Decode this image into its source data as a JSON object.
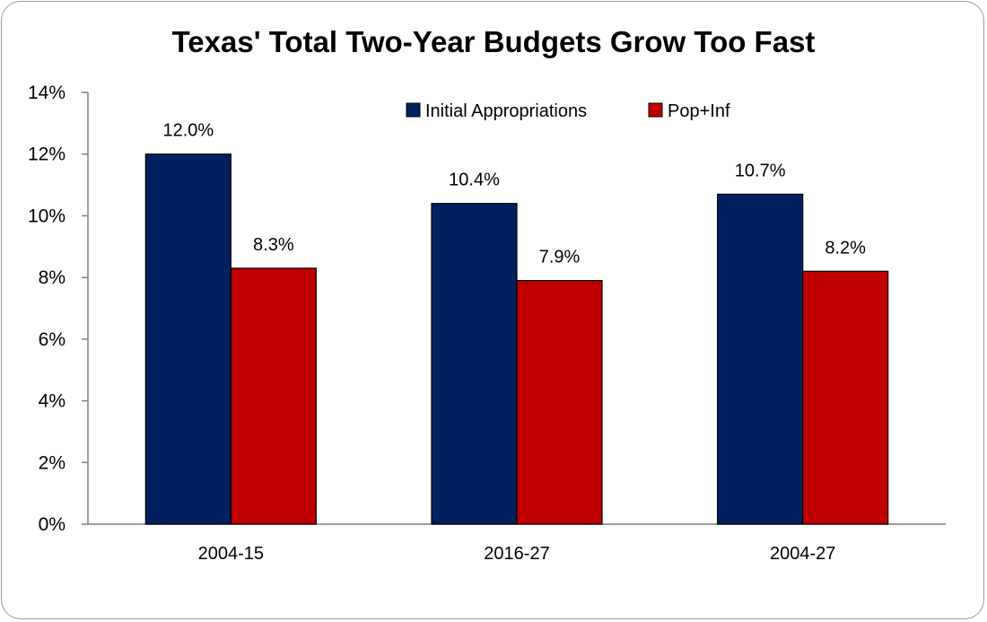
{
  "chart_data": {
    "type": "bar",
    "title": "Texas' Total Two-Year Budgets Grow Too Fast",
    "categories": [
      "2004-15",
      "2016-27",
      "2004-27"
    ],
    "series": [
      {
        "name": "Initial Appropriations",
        "color": "#002060",
        "values": [
          12.0,
          10.4,
          10.7
        ],
        "labels": [
          "12.0%",
          "10.4%",
          "10.7%"
        ]
      },
      {
        "name": "Pop+Inf",
        "color": "#C00000",
        "values": [
          8.3,
          7.9,
          8.2
        ],
        "labels": [
          "8.3%",
          "7.9%",
          "8.2%"
        ]
      }
    ],
    "ylim": [
      0,
      14
    ],
    "yticks": [
      0,
      2,
      4,
      6,
      8,
      10,
      12,
      14
    ],
    "ytick_labels": [
      "0%",
      "2%",
      "4%",
      "6%",
      "8%",
      "10%",
      "12%",
      "14%"
    ],
    "xlabel": "",
    "ylabel": "",
    "grid": false,
    "legend_position": "top-right"
  }
}
